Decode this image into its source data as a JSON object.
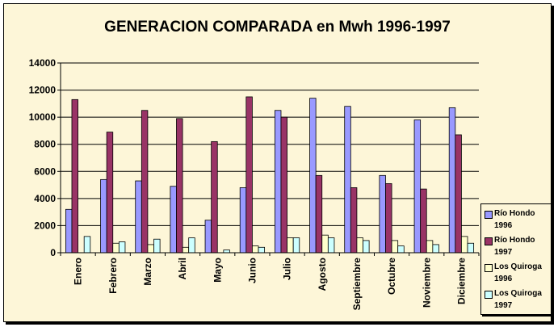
{
  "chart_data": {
    "type": "bar",
    "title": "GENERACION COMPARADA en Mwh 1996-1997",
    "xlabel": "",
    "ylabel": "",
    "ylim": [
      0,
      14000
    ],
    "yticks": [
      "0",
      "2000",
      "4000",
      "6000",
      "8000",
      "10000",
      "12000",
      "14000"
    ],
    "grid": true,
    "legend_position": "right",
    "categories": [
      "Enero",
      "Febrero",
      "Marzo",
      "Abril",
      "Mayo",
      "Junio",
      "Julio",
      "Agosto",
      "Septiembre",
      "Octubre",
      "Noviembre",
      "Diciembre"
    ],
    "series": [
      {
        "name": "Río Hondo 1996",
        "legend_lines": [
          "Río Hondo",
          "1996"
        ],
        "color": "#9999ff",
        "values": [
          3200,
          5400,
          5300,
          4900,
          2400,
          4800,
          10500,
          11400,
          10800,
          5700,
          9800,
          10700
        ]
      },
      {
        "name": "Río Hondo 1997",
        "legend_lines": [
          "Río Hondo",
          "1997"
        ],
        "color": "#993366",
        "values": [
          11300,
          8900,
          10500,
          9900,
          8200,
          11500,
          10000,
          5700,
          4800,
          5100,
          4700,
          8700
        ]
      },
      {
        "name": "Los Quiroga 1996",
        "legend_lines": [
          "Los Quiroga",
          "1996"
        ],
        "color": "#ffffcc",
        "values": [
          0,
          700,
          600,
          400,
          0,
          500,
          1100,
          1300,
          1100,
          900,
          900,
          1200
        ]
      },
      {
        "name": "Los Quiroga 1997",
        "legend_lines": [
          "Los Quiroga",
          "1997"
        ],
        "color": "#ccffff",
        "values": [
          1200,
          800,
          1000,
          1100,
          200,
          400,
          1100,
          1100,
          900,
          500,
          600,
          700
        ]
      }
    ]
  }
}
